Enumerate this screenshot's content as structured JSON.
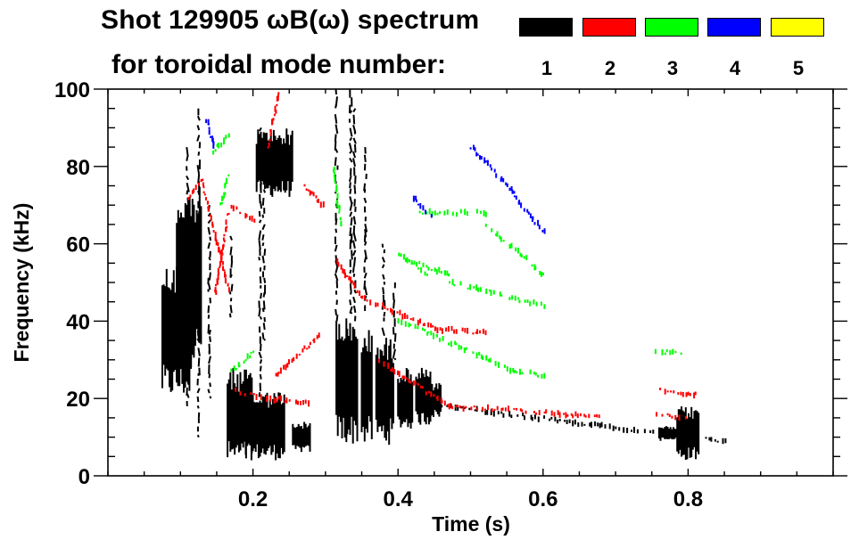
{
  "chart_data": {
    "type": "heatmap",
    "title_line1": "Shot 129905 ωB(ω) spectrum",
    "title_line2": "for toroidal mode number:",
    "xlabel": "Time (s)",
    "ylabel": "Frequency (kHz)",
    "xlim": [
      0.0,
      1.0
    ],
    "ylim": [
      0,
      100
    ],
    "x_ticks": [
      0.2,
      0.4,
      0.6,
      0.8
    ],
    "x_tick_labels": [
      "0.2",
      "0.4",
      "0.6",
      "0.8"
    ],
    "y_ticks": [
      0,
      20,
      40,
      60,
      80,
      100
    ],
    "y_tick_labels": [
      "0",
      "20",
      "40",
      "60",
      "80",
      "100"
    ],
    "x_minor_step": 0.05,
    "y_minor_step": 5,
    "grid": false,
    "legend": {
      "placement": "top-right",
      "entries": [
        {
          "label": "1",
          "color": "#000000"
        },
        {
          "label": "2",
          "color": "#ff0000"
        },
        {
          "label": "3",
          "color": "#00ff00"
        },
        {
          "label": "4",
          "color": "#0000ff"
        },
        {
          "label": "5",
          "color": "#ffff00"
        }
      ]
    },
    "series": [
      {
        "name": "n=1",
        "color": "#000000",
        "patches": [
          {
            "t": [
              0.075,
              0.115
            ],
            "f": [
              20,
              55
            ]
          },
          {
            "t": [
              0.095,
              0.13
            ],
            "f": [
              28,
              75
            ]
          },
          {
            "t": [
              0.165,
              0.2
            ],
            "f": [
              3,
              28
            ]
          },
          {
            "t": [
              0.19,
              0.245
            ],
            "f": [
              4,
              22
            ]
          },
          {
            "t": [
              0.205,
              0.255
            ],
            "f": [
              72,
              90
            ]
          },
          {
            "t": [
              0.255,
              0.28
            ],
            "f": [
              6,
              14
            ]
          },
          {
            "t": [
              0.315,
              0.33
            ],
            "f": [
              8,
              42
            ]
          },
          {
            "t": [
              0.33,
              0.345
            ],
            "f": [
              8,
              40
            ]
          },
          {
            "t": [
              0.35,
              0.365
            ],
            "f": [
              8,
              38
            ]
          },
          {
            "t": [
              0.37,
              0.395
            ],
            "f": [
              8,
              36
            ]
          },
          {
            "t": [
              0.4,
              0.42
            ],
            "f": [
              12,
              28
            ]
          },
          {
            "t": [
              0.425,
              0.445
            ],
            "f": [
              13,
              28
            ]
          },
          {
            "t": [
              0.445,
              0.46
            ],
            "f": [
              15,
              24
            ]
          },
          {
            "t": [
              0.785,
              0.815
            ],
            "f": [
              4,
              18
            ]
          },
          {
            "t": [
              0.76,
              0.785
            ],
            "f": [
              9,
              13
            ]
          }
        ],
        "streaks": [
          {
            "t": 0.11,
            "f": [
              18,
              85
            ]
          },
          {
            "t": 0.125,
            "f": [
              10,
              95
            ]
          },
          {
            "t": 0.14,
            "f": [
              20,
              70
            ]
          },
          {
            "t": 0.17,
            "f": [
              40,
              62
            ]
          },
          {
            "t": 0.21,
            "f": [
              20,
              90
            ]
          },
          {
            "t": 0.215,
            "f": [
              35,
              80
            ]
          },
          {
            "t": 0.315,
            "f": [
              40,
              100
            ]
          },
          {
            "t": 0.335,
            "f": [
              42,
              100
            ]
          },
          {
            "t": 0.34,
            "f": [
              40,
              95
            ]
          },
          {
            "t": 0.355,
            "f": [
              42,
              85
            ]
          },
          {
            "t": 0.38,
            "f": [
              36,
              60
            ]
          },
          {
            "t": 0.395,
            "f": [
              30,
              50
            ]
          }
        ],
        "lines": [
          {
            "t": [
              0.46,
              0.85
            ],
            "f": [
              18,
              9
            ]
          }
        ]
      },
      {
        "name": "n=2",
        "color": "#ff0000",
        "lines": [
          {
            "t": [
              0.11,
              0.135
            ],
            "f": [
              72,
              78
            ]
          },
          {
            "t": [
              0.13,
              0.165
            ],
            "f": [
              75,
              48
            ]
          },
          {
            "t": [
              0.145,
              0.165
            ],
            "f": [
              45,
              68
            ]
          },
          {
            "t": [
              0.17,
              0.2
            ],
            "f": [
              70,
              66
            ]
          },
          {
            "t": [
              0.22,
              0.235
            ],
            "f": [
              85,
              100
            ]
          },
          {
            "t": [
              0.27,
              0.295
            ],
            "f": [
              75,
              70
            ]
          },
          {
            "t": [
              0.315,
              0.35
            ],
            "f": [
              55,
              46
            ]
          },
          {
            "t": [
              0.35,
              0.45
            ],
            "f": [
              46,
              38
            ]
          },
          {
            "t": [
              0.45,
              0.52
            ],
            "f": [
              38,
              37
            ]
          },
          {
            "t": [
              0.175,
              0.22
            ],
            "f": [
              22,
              20
            ]
          },
          {
            "t": [
              0.22,
              0.28
            ],
            "f": [
              20,
              19
            ]
          },
          {
            "t": [
              0.23,
              0.29
            ],
            "f": [
              26,
              36
            ]
          },
          {
            "t": [
              0.37,
              0.47
            ],
            "f": [
              30,
              18
            ]
          },
          {
            "t": [
              0.47,
              0.63
            ],
            "f": [
              18,
              16
            ]
          },
          {
            "t": [
              0.63,
              0.68
            ],
            "f": [
              16,
              15
            ]
          },
          {
            "t": [
              0.76,
              0.81
            ],
            "f": [
              22,
              21
            ]
          },
          {
            "t": [
              0.755,
              0.795
            ],
            "f": [
              16,
              15
            ]
          }
        ]
      },
      {
        "name": "n=3",
        "color": "#00ff00",
        "lines": [
          {
            "t": [
              0.145,
              0.165
            ],
            "f": [
              84,
              88
            ]
          },
          {
            "t": [
              0.155,
              0.165
            ],
            "f": [
              70,
              78
            ]
          },
          {
            "t": [
              0.31,
              0.32
            ],
            "f": [
              80,
              64
            ]
          },
          {
            "t": [
              0.43,
              0.52
            ],
            "f": [
              68,
              68
            ]
          },
          {
            "t": [
              0.52,
              0.6
            ],
            "f": [
              65,
              52
            ]
          },
          {
            "t": [
              0.41,
              0.47
            ],
            "f": [
              56,
              52
            ]
          },
          {
            "t": [
              0.47,
              0.6
            ],
            "f": [
              50,
              44
            ]
          },
          {
            "t": [
              0.4,
              0.44
            ],
            "f": [
              57,
              52
            ]
          },
          {
            "t": [
              0.4,
              0.44
            ],
            "f": [
              40,
              37
            ]
          },
          {
            "t": [
              0.44,
              0.56
            ],
            "f": [
              37,
              27
            ]
          },
          {
            "t": [
              0.56,
              0.6
            ],
            "f": [
              27,
              26
            ]
          },
          {
            "t": [
              0.17,
              0.2
            ],
            "f": [
              27,
              32
            ]
          },
          {
            "t": [
              0.755,
              0.79
            ],
            "f": [
              32,
              32
            ]
          }
        ]
      },
      {
        "name": "n=4",
        "color": "#0000ff",
        "lines": [
          {
            "t": [
              0.135,
              0.145
            ],
            "f": [
              92,
              85
            ]
          },
          {
            "t": [
              0.42,
              0.445
            ],
            "f": [
              72,
              67
            ]
          },
          {
            "t": [
              0.5,
              0.56
            ],
            "f": [
              85,
              73
            ]
          },
          {
            "t": [
              0.56,
              0.6
            ],
            "f": [
              72,
              63
            ]
          }
        ]
      },
      {
        "name": "n=5",
        "color": "#ffff00",
        "lines": []
      }
    ]
  }
}
